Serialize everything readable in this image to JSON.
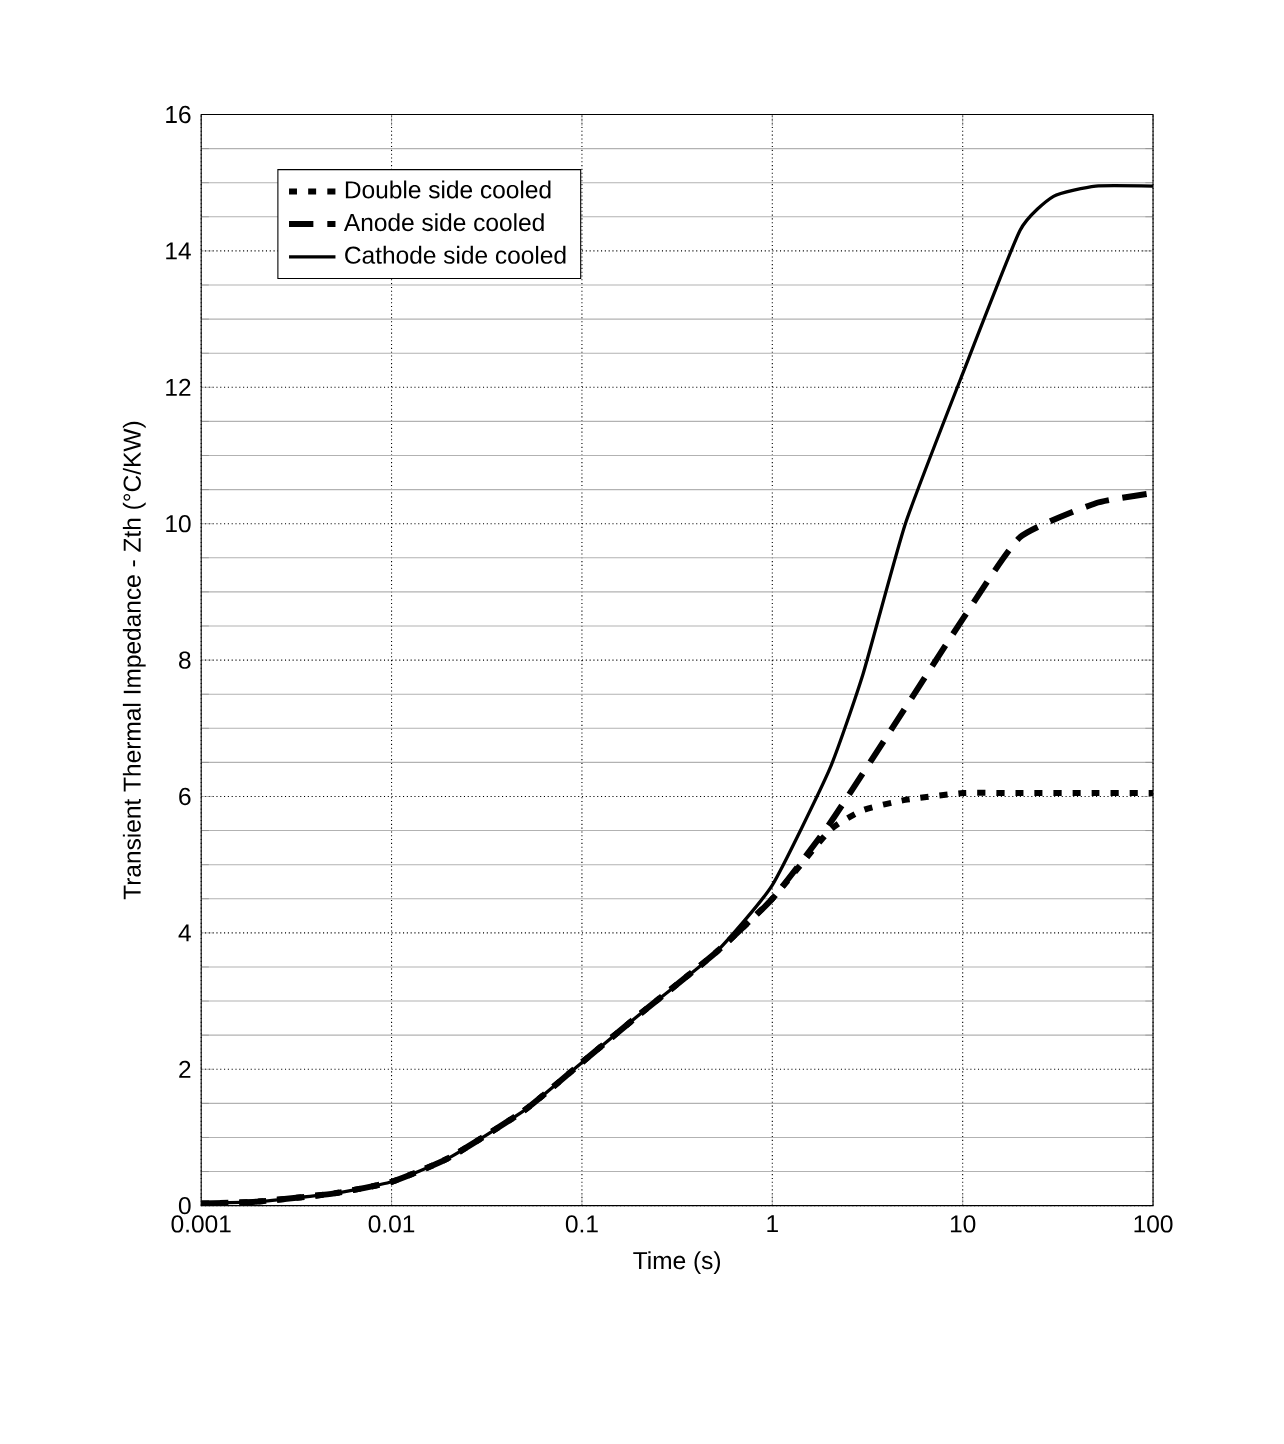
{
  "chart_data": {
    "type": "line",
    "xlabel": "Time (s)",
    "ylabel": "Transient Thermal Impedance - Zth (°C/KW)",
    "log": "x",
    "xlim": [
      0.001,
      100
    ],
    "ylim": [
      0,
      16
    ],
    "xticks": [
      0.001,
      0.01,
      0.1,
      1,
      10,
      100
    ],
    "yticks": [
      0,
      2,
      4,
      6,
      8,
      10,
      12,
      14,
      16
    ],
    "grid": true,
    "legend": "top left",
    "series": [
      {
        "name": "Double side cooled",
        "color": "#000000",
        "line_style": "dotted",
        "x": [
          0.001,
          0.002,
          0.005,
          0.01,
          0.02,
          0.05,
          0.1,
          0.2,
          0.5,
          1,
          2,
          3,
          5,
          10,
          20,
          50,
          100
        ],
        "values": [
          0.03,
          0.06,
          0.18,
          0.35,
          0.7,
          1.4,
          2.1,
          2.8,
          3.7,
          4.5,
          5.5,
          5.8,
          5.95,
          6.05,
          6.05,
          6.05,
          6.05
        ]
      },
      {
        "name": "Anode side cooled",
        "color": "#000000",
        "line_style": "dashed",
        "x": [
          0.001,
          0.002,
          0.005,
          0.01,
          0.02,
          0.05,
          0.1,
          0.2,
          0.5,
          1,
          2,
          5,
          10,
          20,
          50,
          100
        ],
        "values": [
          0.03,
          0.06,
          0.18,
          0.35,
          0.7,
          1.4,
          2.1,
          2.8,
          3.7,
          4.5,
          5.6,
          7.3,
          8.6,
          9.8,
          10.3,
          10.45
        ]
      },
      {
        "name": "Cathode side cooled",
        "color": "#000000",
        "line_style": "solid",
        "x": [
          0.001,
          0.002,
          0.005,
          0.01,
          0.02,
          0.05,
          0.1,
          0.2,
          0.5,
          1,
          2,
          3,
          5,
          10,
          20,
          30,
          50,
          100
        ],
        "values": [
          0.03,
          0.06,
          0.18,
          0.35,
          0.7,
          1.4,
          2.1,
          2.8,
          3.7,
          4.7,
          6.4,
          7.8,
          10.0,
          12.2,
          14.3,
          14.8,
          14.95,
          14.95
        ]
      }
    ]
  }
}
